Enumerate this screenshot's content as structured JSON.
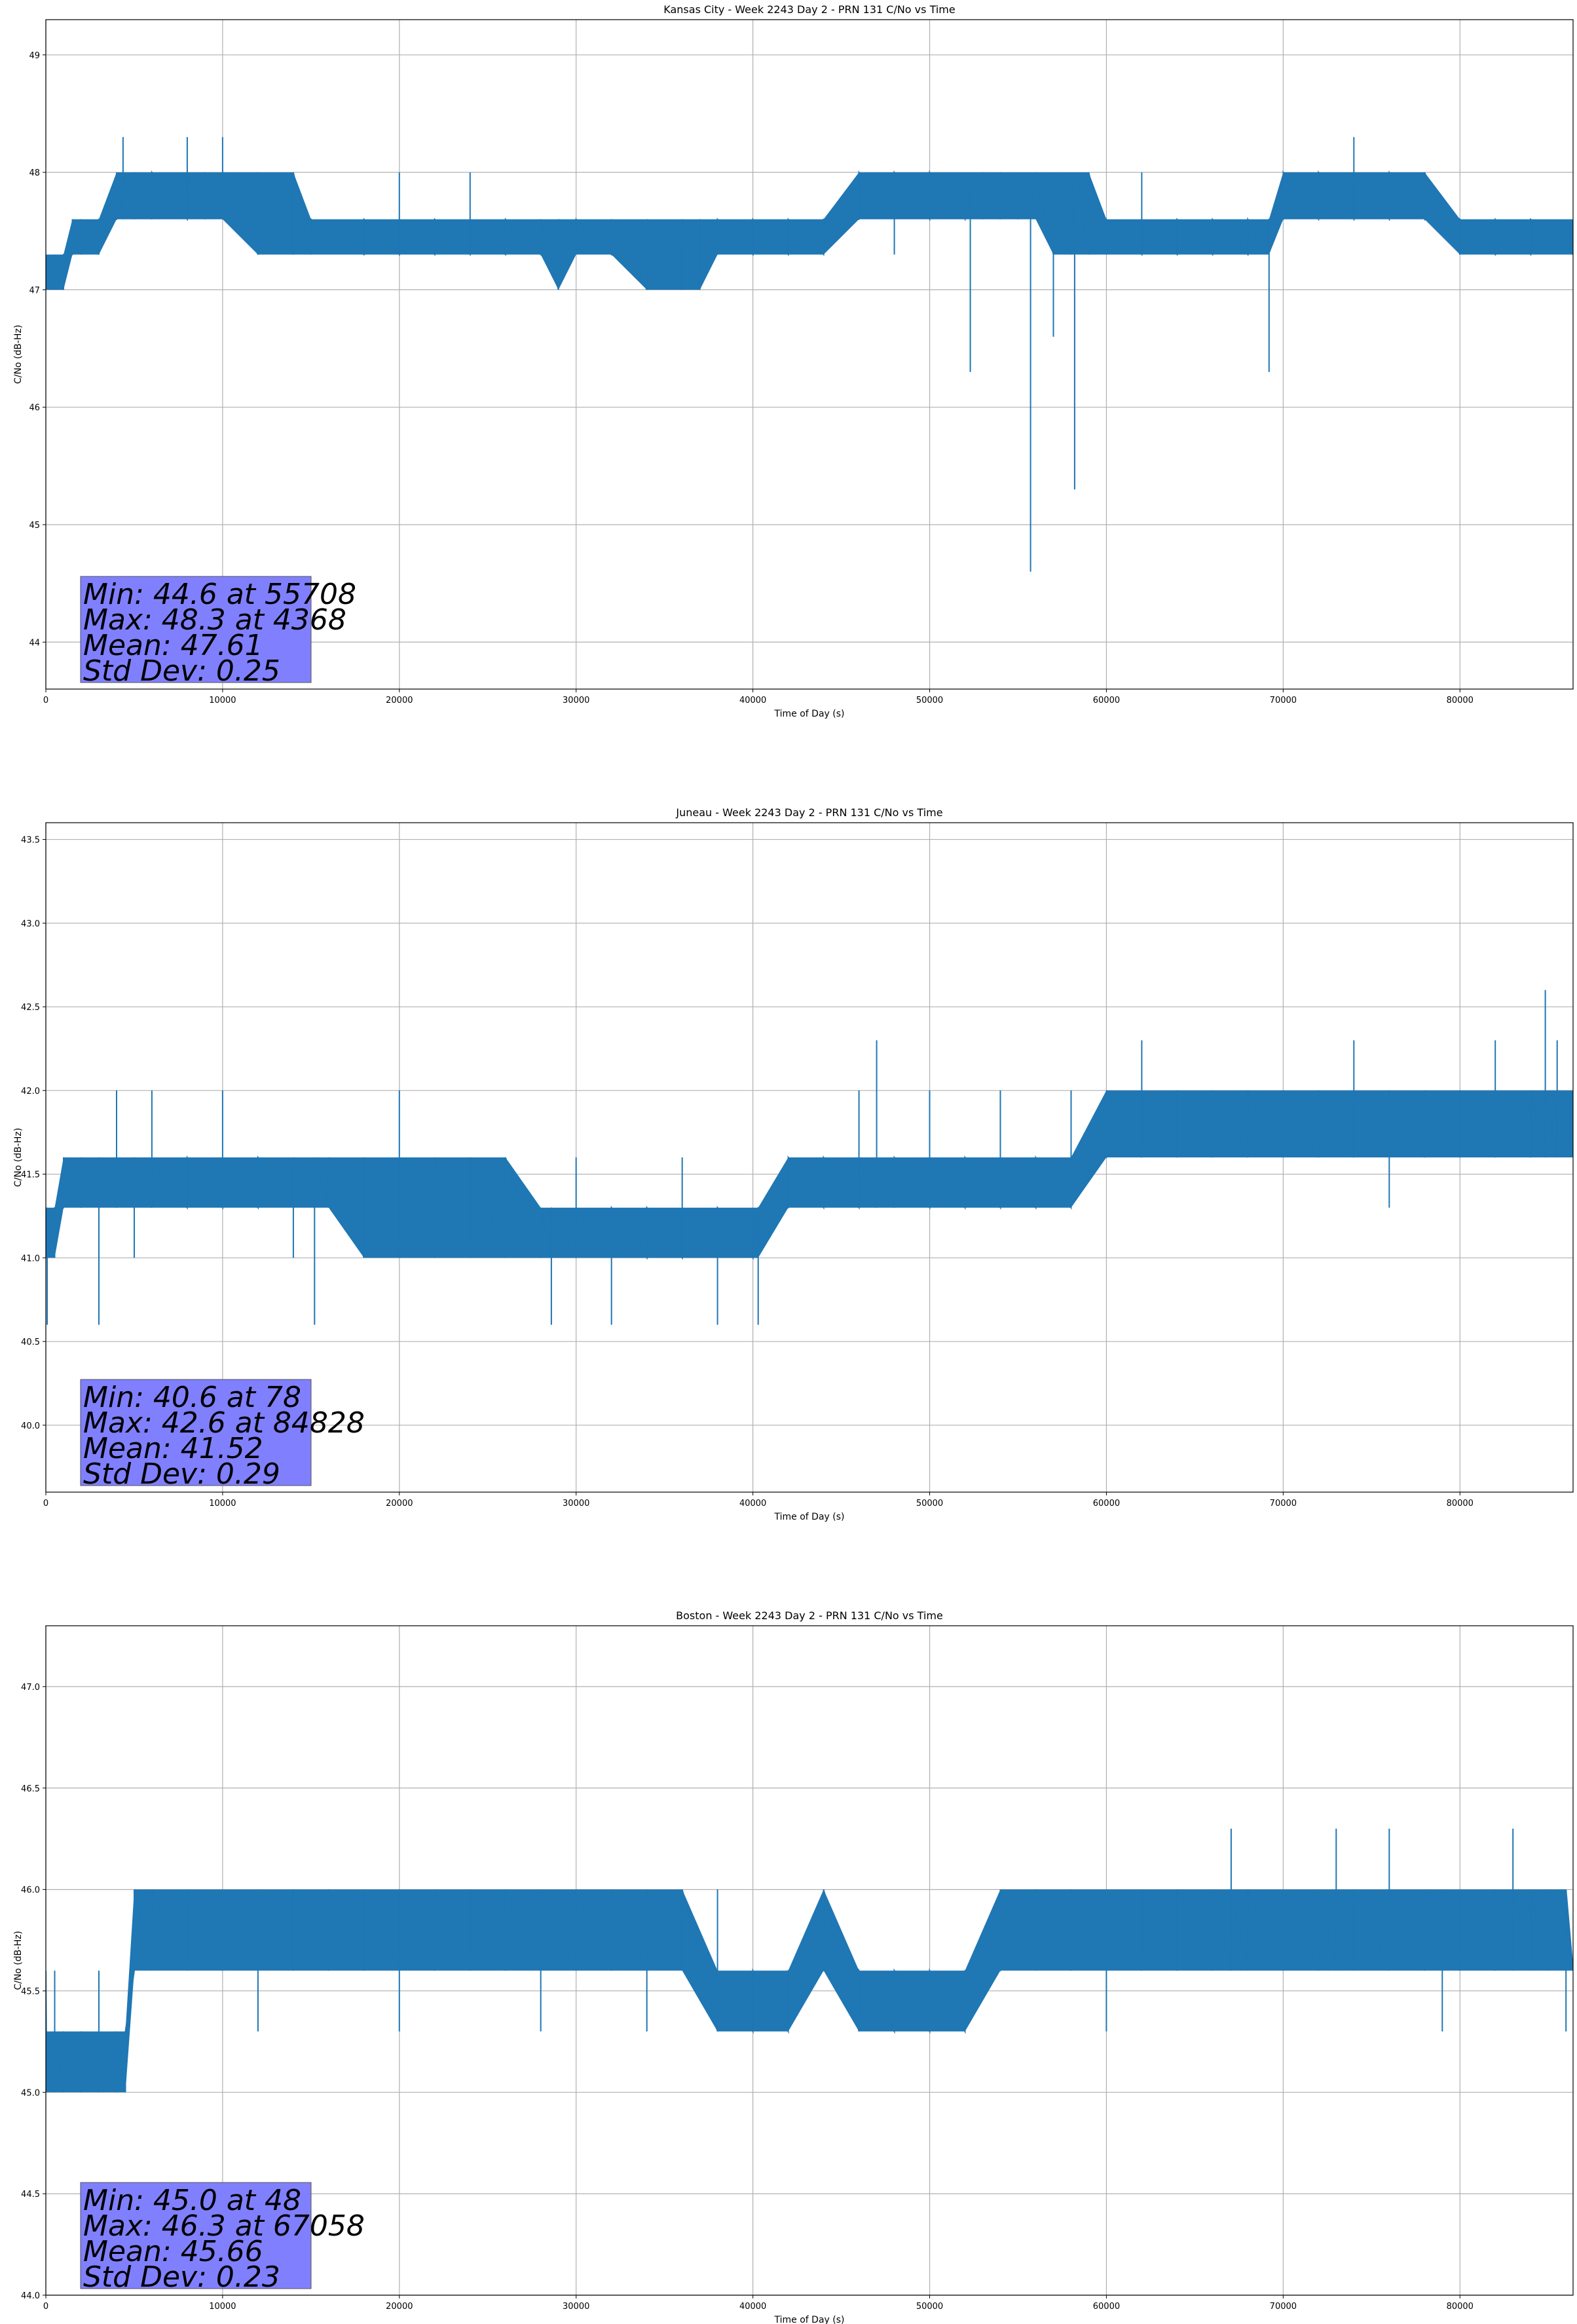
{
  "chart_data": [
    {
      "type": "line",
      "title": "Kansas City - Week 2243 Day 2 - PRN 131 C/No vs Time",
      "xlabel": "Time of Day (s)",
      "ylabel": "C/No (dB-Hz)",
      "xlim": [
        0,
        86400
      ],
      "ylim": [
        43.6,
        49.3
      ],
      "xticks": [
        0,
        10000,
        20000,
        30000,
        40000,
        50000,
        60000,
        70000,
        80000
      ],
      "yticks": [
        44,
        45,
        46,
        47,
        48,
        49
      ],
      "ytick_decimals": 0,
      "grid": true,
      "color": "#1f77b4",
      "series": [
        {
          "x": [
            0,
            500,
            1000,
            1500,
            2000,
            3000,
            4000,
            4368,
            5000,
            6000,
            8000,
            9000,
            10000,
            12000,
            14000,
            15000,
            18000,
            20000,
            22000,
            24000,
            26000,
            28000,
            29000,
            30000,
            32000,
            34000,
            36000,
            37000,
            38000,
            40000,
            42000,
            44000,
            46000,
            48000,
            50000,
            52000,
            52300,
            53000,
            54000,
            55000,
            55708,
            56000,
            57000,
            58000,
            58200,
            59000,
            60000,
            62000,
            64000,
            66000,
            68000,
            69200,
            70000,
            72000,
            74000,
            76000,
            78000,
            80000,
            82000,
            84000,
            86400
          ],
          "y": [
            47.0,
            47.3,
            47.0,
            47.6,
            47.3,
            47.6,
            48.0,
            48.3,
            47.6,
            48.0,
            48.3,
            47.6,
            48.3,
            47.6,
            48.0,
            47.3,
            47.6,
            48.0,
            47.6,
            48.0,
            47.3,
            47.6,
            47.0,
            47.6,
            47.3,
            47.0,
            47.6,
            47.0,
            47.3,
            47.6,
            47.3,
            47.6,
            47.6,
            47.3,
            48.0,
            47.6,
            46.3,
            48.0,
            47.6,
            48.0,
            44.6,
            47.6,
            46.6,
            47.6,
            45.3,
            48.0,
            47.6,
            48.0,
            47.3,
            47.6,
            47.3,
            46.3,
            48.0,
            47.6,
            48.3,
            47.6,
            48.0,
            47.6,
            47.3,
            47.6,
            47.3
          ],
          "band_lower": [
            47.0,
            47.0,
            47.0,
            47.3,
            47.3,
            47.3,
            47.6,
            47.6,
            47.6,
            47.6,
            47.6,
            47.6,
            47.6,
            47.3,
            47.3,
            47.3,
            47.3,
            47.3,
            47.3,
            47.3,
            47.3,
            47.3,
            47.0,
            47.3,
            47.3,
            47.0,
            47.0,
            47.0,
            47.3,
            47.3,
            47.3,
            47.3,
            47.6,
            47.6,
            47.6,
            47.6,
            47.6,
            47.6,
            47.6,
            47.6,
            47.6,
            47.6,
            47.3,
            47.3,
            47.3,
            47.3,
            47.3,
            47.3,
            47.3,
            47.3,
            47.3,
            47.3,
            47.6,
            47.6,
            47.6,
            47.6,
            47.6,
            47.3,
            47.3,
            47.3,
            47.3
          ],
          "band_upper": [
            47.3,
            47.3,
            47.3,
            47.6,
            47.6,
            47.6,
            48.0,
            48.0,
            48.0,
            48.0,
            48.0,
            48.0,
            48.0,
            48.0,
            48.0,
            47.6,
            47.6,
            47.6,
            47.6,
            47.6,
            47.6,
            47.6,
            47.6,
            47.6,
            47.6,
            47.6,
            47.6,
            47.6,
            47.6,
            47.6,
            47.6,
            47.6,
            48.0,
            48.0,
            48.0,
            48.0,
            48.0,
            48.0,
            48.0,
            48.0,
            48.0,
            48.0,
            48.0,
            48.0,
            48.0,
            48.0,
            47.6,
            47.6,
            47.6,
            47.6,
            47.6,
            47.6,
            48.0,
            48.0,
            48.0,
            48.0,
            48.0,
            47.6,
            47.6,
            47.6,
            47.6
          ]
        }
      ],
      "annotation": [
        "Min: 44.6 at 55708",
        "Max: 48.3 at 4368",
        "Mean: 47.61",
        "Std Dev: 0.25"
      ]
    },
    {
      "type": "line",
      "title": "Juneau - Week 2243 Day 2 - PRN 131 C/No vs Time",
      "xlabel": "Time of Day (s)",
      "ylabel": "C/No (dB-Hz)",
      "xlim": [
        0,
        86400
      ],
      "ylim": [
        39.6,
        43.6
      ],
      "xticks": [
        0,
        10000,
        20000,
        30000,
        40000,
        50000,
        60000,
        70000,
        80000
      ],
      "yticks": [
        40.0,
        40.5,
        41.0,
        41.5,
        42.0,
        42.5,
        43.0,
        43.5
      ],
      "ytick_decimals": 1,
      "grid": true,
      "color": "#1f77b4",
      "series": [
        {
          "x": [
            0,
            78,
            500,
            1000,
            2000,
            3000,
            4000,
            5000,
            6000,
            8000,
            10000,
            12000,
            14000,
            15200,
            16000,
            18000,
            20000,
            22000,
            24000,
            26000,
            28000,
            28600,
            30000,
            32000,
            34000,
            36000,
            38000,
            40000,
            40300,
            42000,
            44000,
            46000,
            47000,
            48000,
            50000,
            52000,
            54000,
            56000,
            58000,
            60000,
            62000,
            64000,
            66000,
            68000,
            70000,
            72000,
            74000,
            76000,
            78000,
            80000,
            82000,
            84000,
            84828,
            85500,
            86400
          ],
          "y": [
            41.3,
            40.6,
            41.0,
            41.6,
            41.3,
            40.6,
            42.0,
            41.0,
            42.0,
            41.3,
            42.0,
            41.6,
            41.0,
            40.6,
            41.6,
            41.0,
            42.0,
            41.6,
            41.0,
            41.6,
            41.3,
            40.6,
            41.6,
            40.6,
            41.3,
            41.6,
            40.6,
            41.3,
            40.6,
            41.6,
            41.3,
            42.0,
            42.3,
            41.6,
            42.0,
            41.6,
            42.0,
            41.6,
            42.0,
            41.6,
            42.3,
            41.6,
            42.0,
            41.6,
            42.0,
            41.6,
            42.3,
            41.3,
            42.0,
            41.6,
            42.3,
            41.6,
            42.6,
            42.3,
            41.6
          ],
          "band_lower": [
            41.0,
            41.0,
            41.0,
            41.3,
            41.3,
            41.3,
            41.3,
            41.3,
            41.3,
            41.3,
            41.3,
            41.3,
            41.3,
            41.3,
            41.3,
            41.0,
            41.0,
            41.0,
            41.0,
            41.0,
            41.0,
            41.0,
            41.0,
            41.0,
            41.0,
            41.0,
            41.0,
            41.0,
            41.0,
            41.3,
            41.3,
            41.3,
            41.3,
            41.3,
            41.3,
            41.3,
            41.3,
            41.3,
            41.3,
            41.6,
            41.6,
            41.6,
            41.6,
            41.6,
            41.6,
            41.6,
            41.6,
            41.6,
            41.6,
            41.6,
            41.6,
            41.6,
            41.6,
            41.6,
            41.6
          ],
          "band_upper": [
            41.3,
            41.3,
            41.3,
            41.6,
            41.6,
            41.6,
            41.6,
            41.6,
            41.6,
            41.6,
            41.6,
            41.6,
            41.6,
            41.6,
            41.6,
            41.6,
            41.6,
            41.6,
            41.6,
            41.6,
            41.3,
            41.3,
            41.3,
            41.3,
            41.3,
            41.3,
            41.3,
            41.3,
            41.3,
            41.6,
            41.6,
            41.6,
            41.6,
            41.6,
            41.6,
            41.6,
            41.6,
            41.6,
            41.6,
            42.0,
            42.0,
            42.0,
            42.0,
            42.0,
            42.0,
            42.0,
            42.0,
            42.0,
            42.0,
            42.0,
            42.0,
            42.0,
            42.0,
            42.0,
            42.0
          ]
        }
      ],
      "annotation": [
        "Min: 40.6 at 78",
        "Max: 42.6 at 84828",
        "Mean: 41.52",
        "Std Dev: 0.29"
      ]
    },
    {
      "type": "line",
      "title": "Boston - Week 2243 Day 2 - PRN 131 C/No vs Time",
      "xlabel": "Time of Day (s)",
      "ylabel": "C/No (dB-Hz)",
      "xlim": [
        0,
        86400
      ],
      "ylim": [
        44.0,
        47.3
      ],
      "xticks": [
        0,
        10000,
        20000,
        30000,
        40000,
        50000,
        60000,
        70000,
        80000
      ],
      "yticks": [
        44.0,
        44.5,
        45.0,
        45.5,
        46.0,
        46.5,
        47.0
      ],
      "ytick_decimals": 1,
      "grid": true,
      "color": "#1f77b4",
      "series": [
        {
          "x": [
            0,
            48,
            500,
            1000,
            2000,
            3000,
            4000,
            4500,
            5000,
            6000,
            8000,
            10000,
            12000,
            14000,
            16000,
            18000,
            20000,
            22000,
            24000,
            26000,
            28000,
            30000,
            32000,
            34000,
            36000,
            38000,
            40000,
            42000,
            44000,
            46000,
            48000,
            50000,
            52000,
            54000,
            56000,
            58000,
            60000,
            62000,
            64000,
            66000,
            67058,
            68000,
            70000,
            72000,
            73000,
            74000,
            76000,
            78000,
            79000,
            80000,
            82000,
            83000,
            84000,
            85000,
            86000,
            86400
          ],
          "y": [
            45.3,
            45.0,
            45.6,
            45.0,
            45.3,
            45.6,
            45.0,
            45.3,
            45.6,
            46.0,
            45.6,
            46.0,
            45.3,
            46.0,
            45.6,
            46.0,
            45.3,
            46.0,
            45.6,
            46.0,
            45.3,
            45.6,
            46.0,
            45.3,
            45.6,
            46.0,
            45.3,
            45.6,
            46.0,
            45.3,
            45.6,
            45.3,
            45.6,
            46.0,
            45.6,
            46.0,
            45.3,
            46.0,
            45.6,
            46.0,
            46.3,
            45.6,
            46.0,
            45.6,
            46.3,
            45.6,
            46.3,
            45.6,
            45.3,
            46.0,
            45.6,
            46.3,
            45.6,
            46.0,
            45.3,
            45.6
          ],
          "band_lower": [
            45.3,
            45.0,
            45.0,
            45.0,
            45.0,
            45.0,
            45.0,
            45.0,
            45.6,
            45.6,
            45.6,
            45.6,
            45.6,
            45.6,
            45.6,
            45.6,
            45.6,
            45.6,
            45.6,
            45.6,
            45.6,
            45.6,
            45.6,
            45.6,
            45.6,
            45.3,
            45.3,
            45.3,
            45.6,
            45.3,
            45.3,
            45.3,
            45.3,
            45.6,
            45.6,
            45.6,
            45.6,
            45.6,
            45.6,
            45.6,
            45.6,
            45.6,
            45.6,
            45.6,
            45.6,
            45.6,
            45.6,
            45.6,
            45.6,
            45.6,
            45.6,
            45.6,
            45.6,
            45.6,
            45.6,
            45.6
          ],
          "band_upper": [
            45.6,
            45.3,
            45.3,
            45.3,
            45.3,
            45.3,
            45.3,
            45.3,
            46.0,
            46.0,
            46.0,
            46.0,
            46.0,
            46.0,
            46.0,
            46.0,
            46.0,
            46.0,
            46.0,
            46.0,
            46.0,
            46.0,
            46.0,
            46.0,
            46.0,
            45.6,
            45.6,
            45.6,
            46.0,
            45.6,
            45.6,
            45.6,
            45.6,
            46.0,
            46.0,
            46.0,
            46.0,
            46.0,
            46.0,
            46.0,
            46.0,
            46.0,
            46.0,
            46.0,
            46.0,
            46.0,
            46.0,
            46.0,
            46.0,
            46.0,
            46.0,
            46.0,
            46.0,
            46.0,
            46.0,
            45.6
          ]
        }
      ],
      "annotation": [
        "Min: 45.0 at 48",
        "Max: 46.3 at 67058",
        "Mean: 45.66",
        "Std Dev: 0.23"
      ]
    }
  ],
  "colors": {
    "line": "#1f77b4",
    "annotation_box": "#8080ff",
    "grid": "#b0b0b0"
  }
}
